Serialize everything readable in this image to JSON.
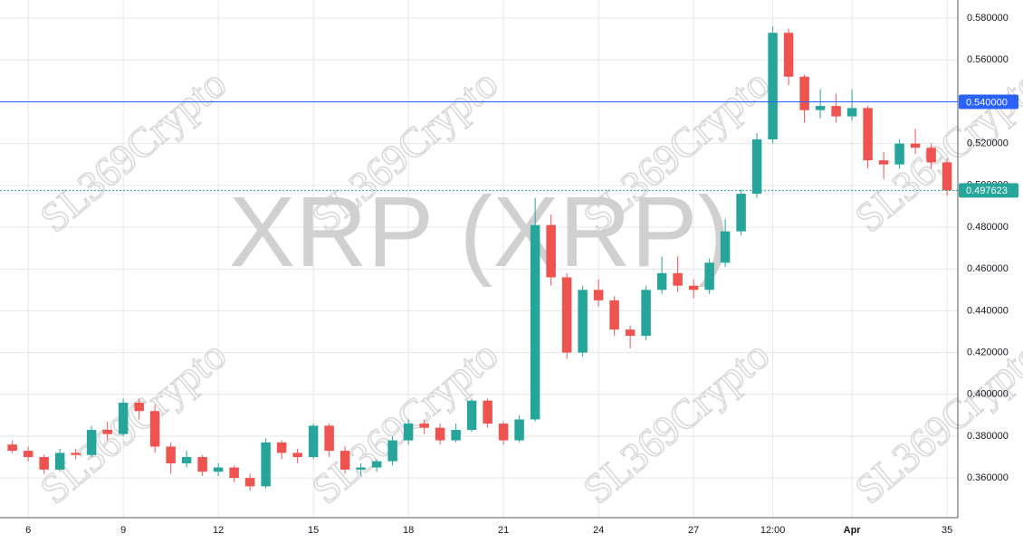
{
  "chart_data": {
    "type": "candlestick",
    "title": "XRP (XRP)",
    "watermark": "SL369Crypto",
    "x": [
      5.5,
      6,
      6.5,
      7,
      7.5,
      8,
      8.5,
      9,
      9.5,
      10,
      10.5,
      11,
      11.5,
      12,
      12.5,
      13,
      13.5,
      14,
      14.5,
      15,
      15.5,
      16,
      16.5,
      17,
      17.5,
      18,
      18.5,
      19,
      19.5,
      20,
      20.5,
      21,
      21.5,
      22,
      22.5,
      23,
      23.5,
      24,
      24.5,
      25,
      25.5,
      26,
      26.5,
      27,
      27.5,
      28,
      28.5,
      29,
      29.5,
      30,
      30.5,
      31,
      31.5,
      32,
      32.5,
      33,
      33.5,
      34,
      34.5,
      35
    ],
    "open": [
      0.376,
      0.373,
      0.37,
      0.364,
      0.372,
      0.371,
      0.383,
      0.381,
      0.396,
      0.392,
      0.375,
      0.367,
      0.37,
      0.363,
      0.365,
      0.36,
      0.356,
      0.377,
      0.372,
      0.37,
      0.385,
      0.373,
      0.364,
      0.365,
      0.368,
      0.378,
      0.386,
      0.384,
      0.378,
      0.383,
      0.397,
      0.386,
      0.378,
      0.388,
      0.481,
      0.456,
      0.42,
      0.45,
      0.445,
      0.431,
      0.428,
      0.45,
      0.458,
      0.452,
      0.45,
      0.463,
      0.478,
      0.496,
      0.522,
      0.573,
      0.552,
      0.536,
      0.538,
      0.533,
      0.537,
      0.512,
      0.51,
      0.52,
      0.518,
      0.511
    ],
    "high": [
      0.378,
      0.375,
      0.371,
      0.374,
      0.374,
      0.385,
      0.387,
      0.398,
      0.398,
      0.395,
      0.377,
      0.373,
      0.371,
      0.367,
      0.366,
      0.362,
      0.379,
      0.378,
      0.374,
      0.386,
      0.386,
      0.375,
      0.367,
      0.369,
      0.38,
      0.388,
      0.388,
      0.386,
      0.386,
      0.398,
      0.398,
      0.387,
      0.39,
      0.494,
      0.486,
      0.458,
      0.452,
      0.455,
      0.447,
      0.433,
      0.452,
      0.466,
      0.466,
      0.455,
      0.465,
      0.484,
      0.498,
      0.525,
      0.576,
      0.575,
      0.553,
      0.546,
      0.544,
      0.546,
      0.538,
      0.516,
      0.522,
      0.527,
      0.52,
      0.513
    ],
    "low": [
      0.372,
      0.368,
      0.362,
      0.363,
      0.369,
      0.37,
      0.378,
      0.38,
      0.388,
      0.372,
      0.362,
      0.365,
      0.361,
      0.361,
      0.358,
      0.354,
      0.355,
      0.369,
      0.367,
      0.369,
      0.37,
      0.362,
      0.361,
      0.363,
      0.366,
      0.376,
      0.381,
      0.376,
      0.377,
      0.382,
      0.384,
      0.376,
      0.377,
      0.387,
      0.452,
      0.417,
      0.418,
      0.442,
      0.428,
      0.422,
      0.426,
      0.448,
      0.449,
      0.446,
      0.448,
      0.461,
      0.476,
      0.494,
      0.52,
      0.548,
      0.53,
      0.532,
      0.53,
      0.531,
      0.508,
      0.503,
      0.508,
      0.515,
      0.508,
      0.495
    ],
    "close": [
      0.373,
      0.37,
      0.364,
      0.372,
      0.371,
      0.383,
      0.381,
      0.396,
      0.392,
      0.375,
      0.367,
      0.37,
      0.363,
      0.365,
      0.36,
      0.356,
      0.377,
      0.372,
      0.37,
      0.385,
      0.373,
      0.364,
      0.365,
      0.368,
      0.378,
      0.386,
      0.384,
      0.378,
      0.383,
      0.397,
      0.386,
      0.378,
      0.388,
      0.481,
      0.456,
      0.42,
      0.45,
      0.445,
      0.431,
      0.428,
      0.45,
      0.458,
      0.452,
      0.45,
      0.463,
      0.478,
      0.496,
      0.522,
      0.573,
      0.552,
      0.536,
      0.538,
      0.533,
      0.537,
      0.512,
      0.51,
      0.52,
      0.518,
      0.511,
      0.4976
    ],
    "up_color": "#26a69a",
    "down_color": "#ef5350",
    "xlim": [
      5.11,
      35.34
    ],
    "xticks": [
      6,
      9,
      12,
      15,
      18,
      21,
      24,
      27,
      {
        "value": 29.5,
        "label": "12:00"
      },
      {
        "value": 32,
        "label": "Apr"
      },
      35
    ],
    "ylim": [
      0.341,
      0.5887
    ],
    "yticks": [
      {
        "value": 0.36,
        "label": "0.360000"
      },
      {
        "value": 0.38,
        "label": "0.380000"
      },
      {
        "value": 0.4,
        "label": "0.400000"
      },
      {
        "value": 0.42,
        "label": "0.420000"
      },
      {
        "value": 0.44,
        "label": "0.440000"
      },
      {
        "value": 0.46,
        "label": "0.460000"
      },
      {
        "value": 0.48,
        "label": "0.480000"
      },
      {
        "value": 0.5,
        "label": "0.500000"
      },
      {
        "value": 0.52,
        "label": "0.520000"
      },
      {
        "value": 0.54,
        "label": "0.540000"
      },
      {
        "value": 0.56,
        "label": "0.560000"
      },
      {
        "value": 0.58,
        "label": "0.580000"
      }
    ],
    "price_lines": [
      {
        "value": 0.54,
        "label": "0.540000",
        "color": "#2962ff",
        "style": "solid"
      },
      {
        "value": 0.497623,
        "color": "#26a69a",
        "style": "dotted"
      }
    ],
    "grid": true
  }
}
